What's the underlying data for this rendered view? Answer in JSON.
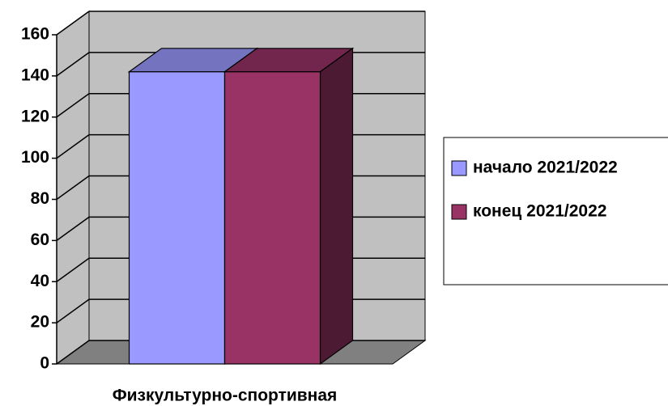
{
  "chart_data": {
    "type": "bar3d",
    "categories": [
      "Физкультурно-спортивная"
    ],
    "series": [
      {
        "name": "начало 2021/2022",
        "color": "#9999ff",
        "values": [
          142
        ]
      },
      {
        "name": "конец 2021/2022",
        "color": "#993366",
        "values": [
          142
        ]
      }
    ],
    "ylim": [
      0,
      160
    ],
    "yticks": [
      0,
      20,
      40,
      60,
      80,
      100,
      120,
      140,
      160
    ],
    "grid": true,
    "legend": "right"
  }
}
